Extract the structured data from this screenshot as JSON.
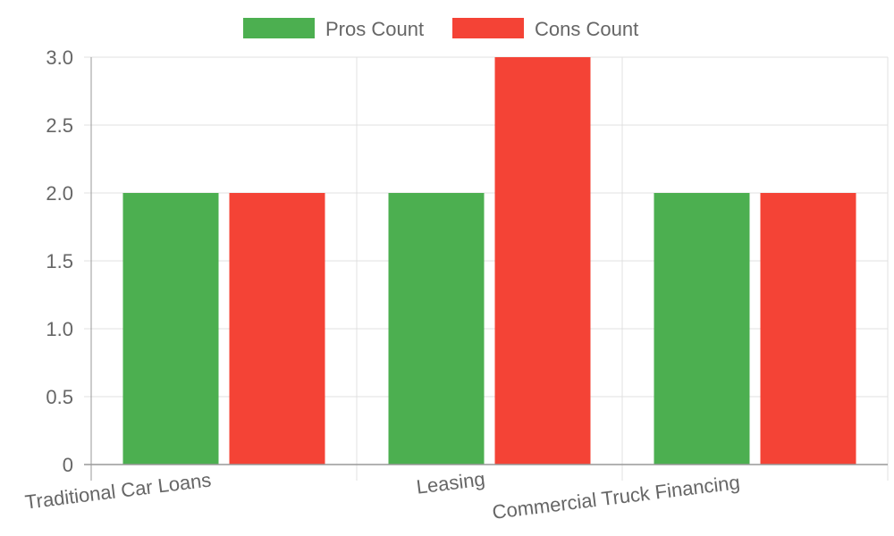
{
  "chart_data": {
    "type": "bar",
    "categories": [
      "Traditional Car Loans",
      "Leasing",
      "Commercial Truck Financing"
    ],
    "series": [
      {
        "name": "Pros Count",
        "values": [
          2,
          2,
          2
        ],
        "color": "#4caf50"
      },
      {
        "name": "Cons Count",
        "values": [
          2,
          3,
          2
        ],
        "color": "#f44336"
      }
    ],
    "y_ticks": [
      "0",
      "0.5",
      "1.0",
      "1.5",
      "2.0",
      "2.5",
      "3.0"
    ],
    "ylim": [
      0,
      3
    ],
    "grid": true,
    "legend_position": "top",
    "colors": {
      "grid": "#e0e0e0",
      "axis": "#999999",
      "text": "#666666"
    }
  }
}
